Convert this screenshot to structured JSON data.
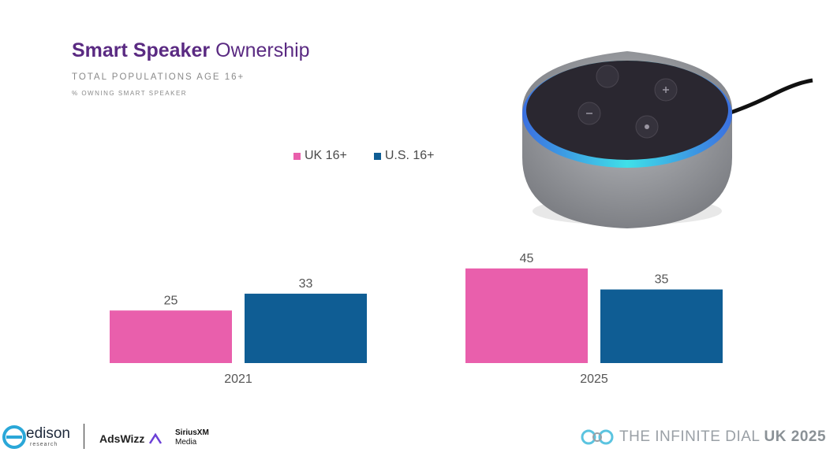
{
  "header": {
    "title_bold": "Smart Speaker",
    "title_rest": "Ownership",
    "subtitle": "TOTAL POPULATIONS AGE 16+",
    "note": "% OWNING SMART SPEAKER"
  },
  "chart_data": {
    "type": "bar",
    "categories": [
      "2021",
      "2025"
    ],
    "series": [
      {
        "name": "UK 16+",
        "values": [
          25,
          45
        ],
        "color": "#e95fac"
      },
      {
        "name": "U.S. 16+",
        "values": [
          33,
          35
        ],
        "color": "#0f5d94"
      }
    ],
    "ylim": [
      0,
      50
    ],
    "legend": "top-center",
    "grid": false
  },
  "legend": {
    "uk_label": "UK 16+",
    "us_label": "U.S. 16+"
  },
  "footer": {
    "edison": "edison",
    "edison_sub": "research",
    "adswizz": "AdsWizz",
    "siriusxm": "SiriusXM",
    "siriusxm_sub": "Media",
    "brand_main": "THE INFINITE DIAL",
    "brand_tail": "UK 2025"
  },
  "colors": {
    "title": "#5a2a82",
    "uk": "#e95fac",
    "us": "#0f5d94"
  }
}
